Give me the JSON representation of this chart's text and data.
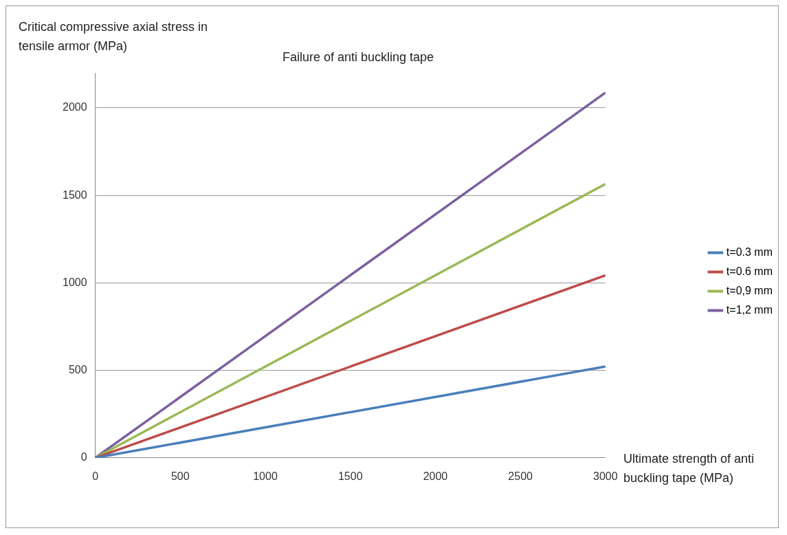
{
  "chart_data": {
    "type": "line",
    "title": "Failure of anti buckling tape",
    "xlabel": "Ultimate strength of anti buckling tape (MPa)",
    "ylabel": "Critical compressive axial stress in tensile armor (MPa)",
    "x": [
      0,
      3000
    ],
    "series": [
      {
        "name": "t=0.3 mm",
        "color": "#4a7ebb",
        "values": [
          0,
          522
        ]
      },
      {
        "name": "t=0.6 mm",
        "color": "#be4b48",
        "values": [
          0,
          1043
        ]
      },
      {
        "name": "t=0,9 mm",
        "color": "#98b954",
        "values": [
          0,
          1565
        ]
      },
      {
        "name": "t=1,2 mm",
        "color": "#7d5fa0",
        "values": [
          0,
          2087
        ]
      }
    ],
    "xlim": [
      0,
      3000
    ],
    "xticks": [
      0,
      500,
      1000,
      1500,
      2000,
      2500,
      3000
    ],
    "ylim": [
      0,
      2200
    ],
    "yticks": [
      0,
      500,
      1000,
      1500,
      2000
    ],
    "grid": "y",
    "legend": "right",
    "marker": "none",
    "line_style": "solid"
  }
}
